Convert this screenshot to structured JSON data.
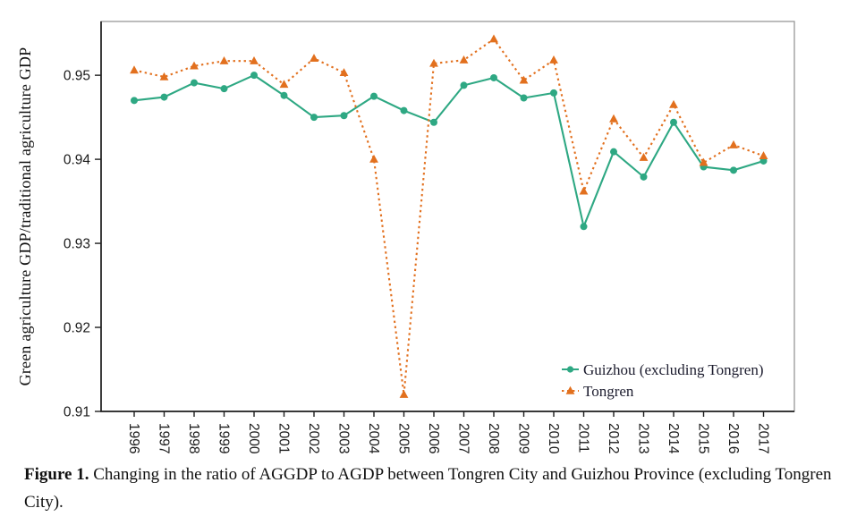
{
  "figure": {
    "caption_label": "Figure 1.",
    "caption_text": " Changing in the ratio of AGGDP to AGDP between Tongren City and Guizhou Province (excluding Tongren City)."
  },
  "chart_data": {
    "type": "line",
    "title": "",
    "xlabel": "",
    "ylabel": "Green agriculture GDP/traditional agriculture GDP",
    "x": [
      1996,
      1997,
      1998,
      1999,
      2000,
      2001,
      2002,
      2003,
      2004,
      2005,
      2006,
      2007,
      2008,
      2009,
      2010,
      2011,
      2012,
      2013,
      2014,
      2015,
      2016,
      2017
    ],
    "yticks": [
      0.91,
      0.92,
      0.93,
      0.94,
      0.95
    ],
    "ylim": [
      0.91,
      0.9564
    ],
    "grid": false,
    "legend_position": "bottom-right",
    "series": [
      {
        "name": "Guizhou (excluding Tongren)",
        "color": "#2EA883",
        "marker": "circle",
        "line": "solid",
        "values": [
          0.947,
          0.9474,
          0.9491,
          0.9484,
          0.95,
          0.9476,
          0.945,
          0.9452,
          0.9475,
          0.9458,
          0.9444,
          0.9488,
          0.9497,
          0.9473,
          0.9479,
          0.932,
          0.9409,
          0.9379,
          0.9444,
          0.9391,
          0.9387,
          0.9398
        ]
      },
      {
        "name": "Tongren",
        "color": "#E2701E",
        "marker": "triangle",
        "line": "dashed",
        "values": [
          0.9506,
          0.9498,
          0.9511,
          0.9517,
          0.9517,
          0.9489,
          0.952,
          0.9503,
          0.94,
          0.912,
          0.9514,
          0.9518,
          0.9543,
          0.9494,
          0.9518,
          0.9362,
          0.9448,
          0.9402,
          0.9465,
          0.9396,
          0.9417,
          0.9404
        ]
      }
    ],
    "colors": {
      "guizhou": "#2EA883",
      "tongren": "#E2701E",
      "axis": "#1f1f1f",
      "border": "#909090"
    }
  }
}
